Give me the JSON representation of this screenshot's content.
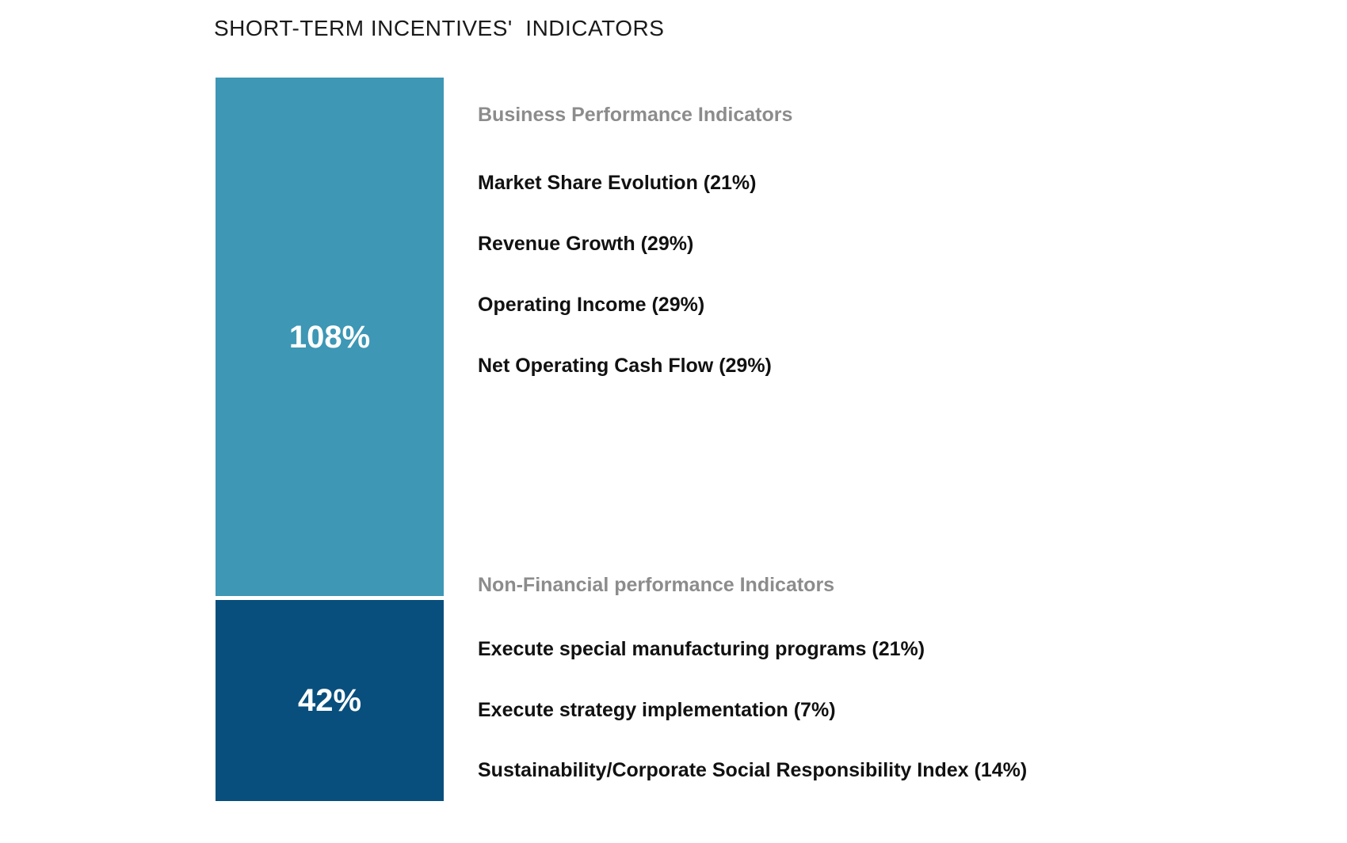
{
  "title": "SHORT-TERM INCENTIVES'  INDICATORS",
  "colors": {
    "segment_top": "#3D97B5",
    "segment_bottom": "#084F7D",
    "group_header_gray": "#8C8C8C",
    "item_text": "#111111",
    "value_text": "#ffffff"
  },
  "chart_data": {
    "type": "bar",
    "stacked": true,
    "title": "SHORT-TERM INCENTIVES'  INDICATORS",
    "grid": false,
    "legend_position": "none",
    "segments": [
      {
        "group": "Business Performance Indicators",
        "value": 108,
        "value_label": "108%",
        "color": "#3D97B5",
        "items": [
          {
            "name": "Market Share Evolution",
            "weight_pct": 21
          },
          {
            "name": "Revenue Growth",
            "weight_pct": 29
          },
          {
            "name": "Operating Income",
            "weight_pct": 29
          },
          {
            "name": "Net Operating Cash Flow",
            "weight_pct": 29
          }
        ]
      },
      {
        "group": "Non-Financial performance Indicators",
        "value": 42,
        "value_label": "42%",
        "color": "#084F7D",
        "items": [
          {
            "name": "Execute special manufacturing programs",
            "weight_pct": 21
          },
          {
            "name": "Execute strategy implementation",
            "weight_pct": 7
          },
          {
            "name": "Sustainability/Corporate Social Responsibility Index",
            "weight_pct": 14
          }
        ]
      }
    ]
  },
  "bar": {
    "top_value_label": "108%",
    "bottom_value_label": "42%"
  },
  "groups": [
    {
      "header": "Business Performance Indicators",
      "items": [
        "Market Share Evolution (21%)",
        "Revenue Growth (29%)",
        "Operating Income (29%)",
        "Net Operating Cash Flow (29%)"
      ]
    },
    {
      "header": "Non-Financial performance Indicators",
      "items": [
        "Execute special manufacturing programs (21%)",
        "Execute strategy implementation (7%)",
        "Sustainability/Corporate Social Responsibility Index (14%)"
      ]
    }
  ]
}
